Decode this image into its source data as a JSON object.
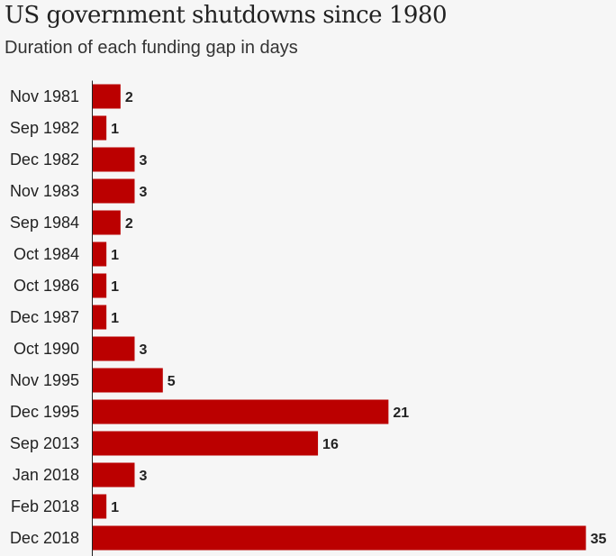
{
  "chart_data": {
    "type": "bar",
    "orientation": "horizontal",
    "title": "US government shutdowns since 1980",
    "subtitle": "Duration of each funding gap in days",
    "xlabel": "",
    "ylabel": "",
    "xlim": [
      0,
      35
    ],
    "categories": [
      "Nov 1981",
      "Sep 1982",
      "Dec 1982",
      "Nov 1983",
      "Sep 1984",
      "Oct 1984",
      "Oct 1986",
      "Dec 1987",
      "Oct 1990",
      "Nov 1995",
      "Dec 1995",
      "Sep 2013",
      "Jan 2018",
      "Feb 2018",
      "Dec 2018"
    ],
    "values": [
      2,
      1,
      3,
      3,
      2,
      1,
      1,
      1,
      3,
      5,
      21,
      16,
      3,
      1,
      35
    ],
    "bar_color": "#bb0000",
    "grid": false,
    "legend": "none"
  }
}
